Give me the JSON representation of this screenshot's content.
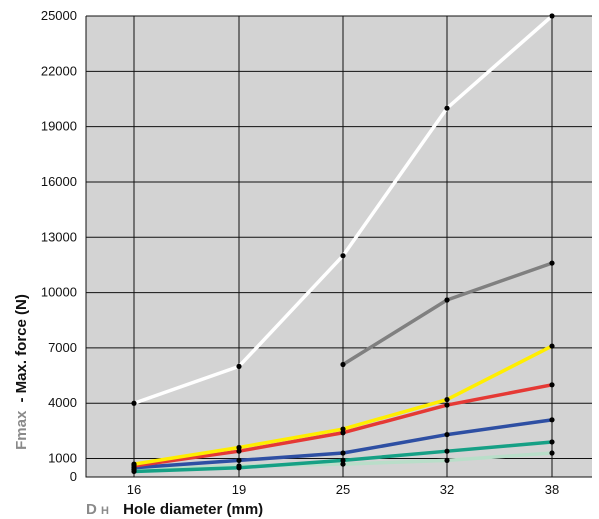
{
  "chart_data": {
    "type": "line",
    "xlabel_symbol": "D",
    "xlabel_symbol_sub": "H",
    "xlabel": "Hole diameter (mm)",
    "ylabel_symbol": "Fmax",
    "ylabel": "- Max. force (N)",
    "x": [
      16,
      19,
      25,
      32,
      38
    ],
    "y_ticks": [
      0,
      1000,
      4000,
      7000,
      10000,
      13000,
      16000,
      19000,
      22000,
      25000
    ],
    "ylim": [
      0,
      25000
    ],
    "grid": true,
    "background": "#d3d3d3",
    "series": [
      {
        "color": "#ffffff",
        "values": [
          4000,
          6000,
          12000,
          20000,
          25000
        ]
      },
      {
        "color": "#808080",
        "values": [
          null,
          null,
          6100,
          9600,
          11600
        ]
      },
      {
        "color": "#ffee00",
        "values": [
          700,
          1600,
          2600,
          4200,
          7100
        ]
      },
      {
        "color": "#e53935",
        "values": [
          600,
          1400,
          2400,
          3900,
          5000
        ]
      },
      {
        "color": "#2e4fa3",
        "values": [
          500,
          900,
          1300,
          2300,
          3100
        ]
      },
      {
        "color": "#16a085",
        "values": [
          300,
          500,
          900,
          1400,
          1900
        ]
      },
      {
        "color": "#b9dec9",
        "values": [
          400,
          600,
          700,
          900,
          1300
        ]
      }
    ]
  }
}
